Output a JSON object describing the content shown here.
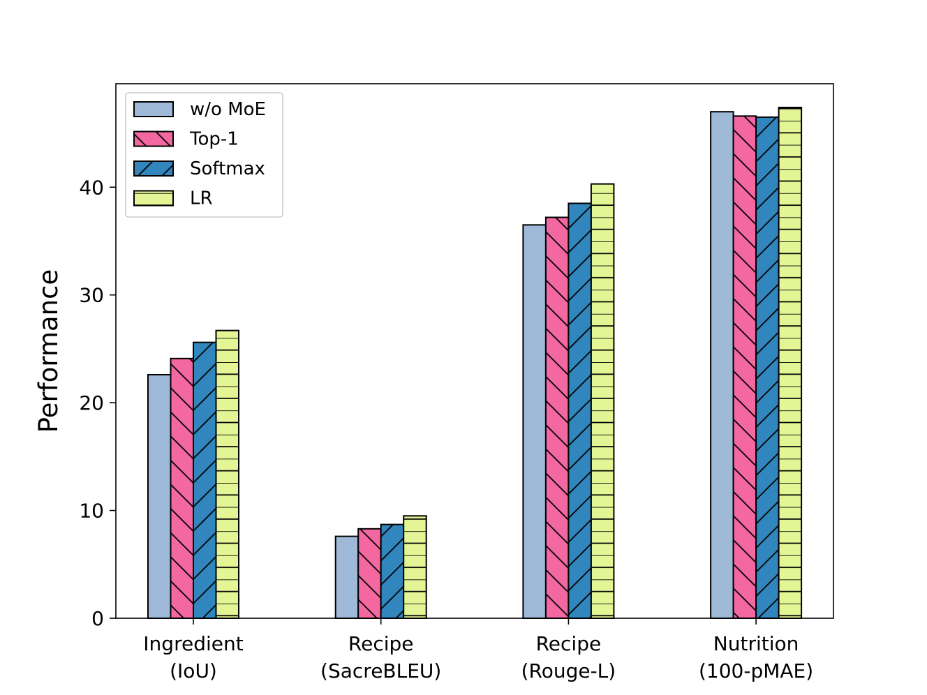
{
  "chart_data": {
    "type": "bar",
    "title": "",
    "xlabel": "",
    "ylabel": "Performance",
    "ylim": [
      0,
      49.6
    ],
    "yticks": [
      0,
      10,
      20,
      30,
      40
    ],
    "categories": [
      {
        "line1": "Ingredient",
        "line2": "(IoU)"
      },
      {
        "line1": "Recipe",
        "line2": "(SacreBLEU)"
      },
      {
        "line1": "Recipe",
        "line2": "(Rouge-L)"
      },
      {
        "line1": "Nutrition",
        "line2": "(100-pMAE)"
      }
    ],
    "series": [
      {
        "name": "w/o MoE",
        "color": "#9fbad9",
        "hatch": "none",
        "values": [
          22.6,
          7.6,
          36.5,
          47.0
        ]
      },
      {
        "name": "Top-1",
        "color": "#f468a1",
        "hatch": "backslash",
        "values": [
          24.1,
          8.3,
          37.2,
          46.6
        ]
      },
      {
        "name": "Softmax",
        "color": "#3186bd",
        "hatch": "slash",
        "values": [
          25.6,
          8.7,
          38.5,
          46.5
        ]
      },
      {
        "name": "LR",
        "color": "#e3f595",
        "hatch": "horizontal",
        "values": [
          26.7,
          9.5,
          40.3,
          47.4
        ]
      }
    ],
    "legend": "top-left",
    "grid": false
  }
}
